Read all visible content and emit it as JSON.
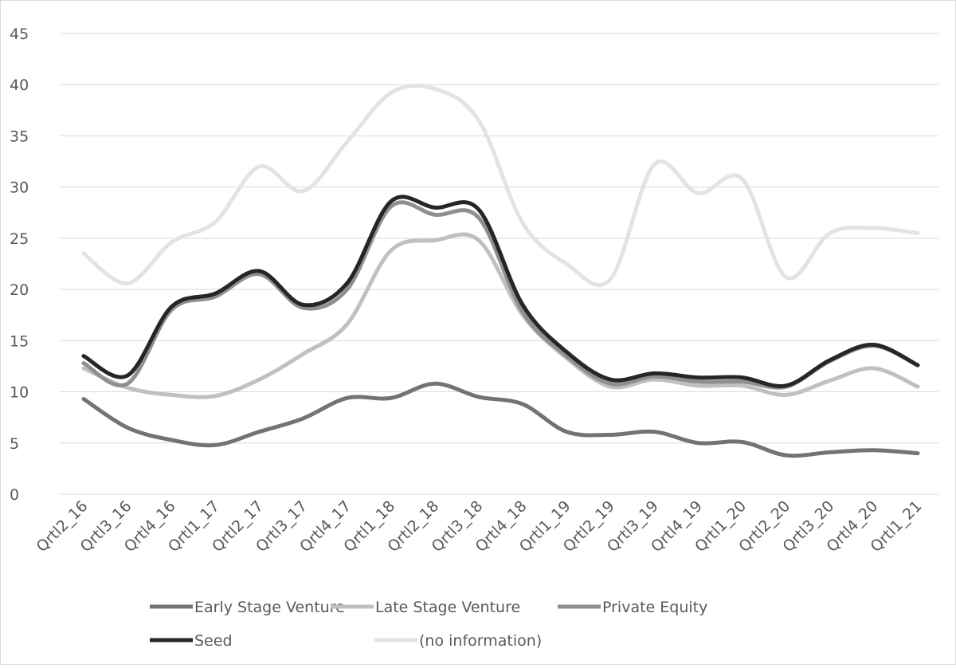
{
  "chart_data": {
    "type": "line",
    "categories": [
      "Qrtl2_16",
      "Qrtl3_16",
      "Qrtl4_16",
      "Qrtl1_17",
      "Qrtl2_17",
      "Qrtl3_17",
      "Qrtl4_17",
      "Qrtl1_18",
      "Qrtl2_18",
      "Qrtl3_18",
      "Qrtl4_18",
      "Qrtl1_19",
      "Qrtl2_19",
      "Qrtl3_19",
      "Qrtl4_19",
      "Qrtl1_20",
      "Qrtl2_20",
      "Qrtl3_20",
      "Qrtl4_20",
      "Qrtl1_21"
    ],
    "series": [
      {
        "name": "Early Stage Venture",
        "color": "#737373",
        "values": [
          9.3,
          6.5,
          5.3,
          4.8,
          6.1,
          7.4,
          9.4,
          9.4,
          10.8,
          9.5,
          8.8,
          6.1,
          5.8,
          6.1,
          5.0,
          5.1,
          3.8,
          4.1,
          4.3,
          4.0
        ]
      },
      {
        "name": "Late Stage Venture",
        "color": "#c0c0c0",
        "values": [
          12.3,
          10.4,
          9.7,
          9.6,
          11.2,
          13.7,
          16.6,
          23.8,
          24.8,
          24.8,
          17.5,
          13.3,
          10.5,
          11.2,
          10.6,
          10.6,
          9.7,
          11.1,
          12.3,
          10.5
        ]
      },
      {
        "name": "Private Equity",
        "color": "#8f8f8f",
        "values": [
          12.8,
          10.8,
          18.0,
          19.3,
          21.5,
          18.2,
          20.0,
          28.1,
          27.3,
          27.0,
          17.8,
          13.5,
          10.8,
          11.5,
          11.0,
          11.0,
          10.5,
          13.0,
          14.5,
          12.6
        ]
      },
      {
        "name": "Seed",
        "color": "#262626",
        "values": [
          13.5,
          11.6,
          18.3,
          19.6,
          21.8,
          18.5,
          20.6,
          28.6,
          28.0,
          27.8,
          18.5,
          13.9,
          11.2,
          11.8,
          11.4,
          11.4,
          10.6,
          13.1,
          14.6,
          12.6
        ]
      },
      {
        "name": "(no information)",
        "color": "#e3e3e3",
        "values": [
          23.5,
          20.6,
          24.6,
          26.6,
          32.0,
          29.6,
          34.4,
          39.2,
          39.6,
          36.5,
          26.5,
          22.5,
          21.0,
          32.2,
          29.4,
          30.8,
          21.2,
          25.5,
          26.0,
          25.5
        ]
      }
    ],
    "ylim": [
      0,
      45
    ],
    "yticks": [
      0,
      5,
      10,
      15,
      20,
      25,
      30,
      35,
      40,
      45
    ],
    "grid": true,
    "legend": "bottom"
  }
}
